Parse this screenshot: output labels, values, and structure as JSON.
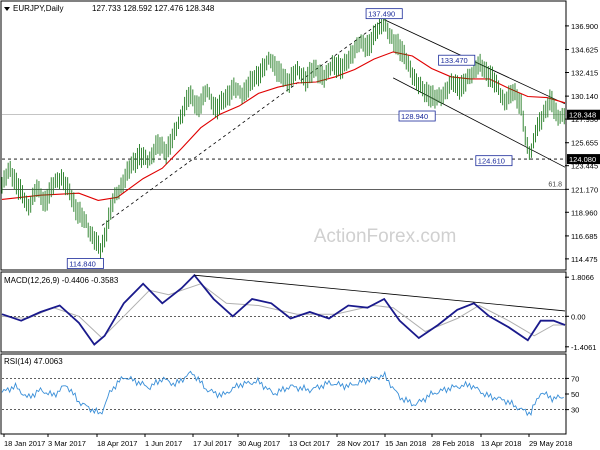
{
  "chart_data": {
    "type": "line",
    "title": "EURJPY,Daily",
    "ohlc_label": "127.733 128.592 127.476 128.348",
    "watermark": "ActionForex.com",
    "x_ticks": [
      "18 Jan 2017",
      "3 Mar 2017",
      "18 Apr 2017",
      "1 Jun 2017",
      "17 Jul 2017",
      "30 Aug 2017",
      "13 Oct 2017",
      "28 Nov 2017",
      "15 Jan 2018",
      "28 Feb 2018",
      "13 Apr 2018",
      "29 May 2018"
    ],
    "price_panel": {
      "ylim": [
        113.5,
        139.2
      ],
      "y_ticks": [
        "136.900",
        "134.625",
        "132.415",
        "130.140",
        "127.930",
        "125.655",
        "123.445",
        "121.170",
        "118.960",
        "116.685",
        "114.475"
      ],
      "last_price": "128.348",
      "support_level": "124.080",
      "fib_level": "121.170",
      "fib_label": "61.8",
      "price_series": [
        {
          "d": 0,
          "v": 121.8
        },
        {
          "d": 6,
          "v": 123.0
        },
        {
          "d": 14,
          "v": 121.0
        },
        {
          "d": 20,
          "v": 119.5
        },
        {
          "d": 27,
          "v": 121.3
        },
        {
          "d": 33,
          "v": 119.8
        },
        {
          "d": 40,
          "v": 121.5
        },
        {
          "d": 46,
          "v": 122.6
        },
        {
          "d": 52,
          "v": 121.0
        },
        {
          "d": 58,
          "v": 119.2
        },
        {
          "d": 65,
          "v": 118.0
        },
        {
          "d": 72,
          "v": 116.5
        },
        {
          "d": 77,
          "v": 115.1
        },
        {
          "d": 80,
          "v": 116.5
        },
        {
          "d": 86,
          "v": 119.8
        },
        {
          "d": 93,
          "v": 121.7
        },
        {
          "d": 100,
          "v": 123.2
        },
        {
          "d": 107,
          "v": 124.4
        },
        {
          "d": 114,
          "v": 124.0
        },
        {
          "d": 121,
          "v": 125.5
        },
        {
          "d": 128,
          "v": 124.7
        },
        {
          "d": 134,
          "v": 126.4
        },
        {
          "d": 140,
          "v": 128.5
        },
        {
          "d": 146,
          "v": 130.2
        },
        {
          "d": 153,
          "v": 129.0
        },
        {
          "d": 160,
          "v": 130.8
        },
        {
          "d": 167,
          "v": 128.8
        },
        {
          "d": 174,
          "v": 129.8
        },
        {
          "d": 181,
          "v": 131.0
        },
        {
          "d": 188,
          "v": 130.4
        },
        {
          "d": 195,
          "v": 131.5
        },
        {
          "d": 202,
          "v": 132.5
        },
        {
          "d": 209,
          "v": 133.9
        },
        {
          "d": 216,
          "v": 132.3
        },
        {
          "d": 223,
          "v": 131.4
        },
        {
          "d": 230,
          "v": 132.8
        },
        {
          "d": 237,
          "v": 131.7
        },
        {
          "d": 244,
          "v": 132.7
        },
        {
          "d": 251,
          "v": 132.0
        },
        {
          "d": 258,
          "v": 133.3
        },
        {
          "d": 265,
          "v": 132.6
        },
        {
          "d": 272,
          "v": 134.1
        },
        {
          "d": 279,
          "v": 135.4
        },
        {
          "d": 286,
          "v": 134.8
        },
        {
          "d": 293,
          "v": 136.6
        },
        {
          "d": 298,
          "v": 137.5
        },
        {
          "d": 303,
          "v": 135.8
        },
        {
          "d": 309,
          "v": 134.9
        },
        {
          "d": 316,
          "v": 133.4
        },
        {
          "d": 323,
          "v": 131.6
        },
        {
          "d": 330,
          "v": 130.5
        },
        {
          "d": 337,
          "v": 129.8
        },
        {
          "d": 344,
          "v": 130.4
        },
        {
          "d": 351,
          "v": 131.5
        },
        {
          "d": 358,
          "v": 130.8
        },
        {
          "d": 365,
          "v": 132.2
        },
        {
          "d": 372,
          "v": 133.3
        },
        {
          "d": 378,
          "v": 132.3
        },
        {
          "d": 385,
          "v": 131.4
        },
        {
          "d": 392,
          "v": 129.7
        },
        {
          "d": 399,
          "v": 130.6
        },
        {
          "d": 405,
          "v": 129.0
        },
        {
          "d": 409,
          "v": 125.4
        },
        {
          "d": 412,
          "v": 124.6
        },
        {
          "d": 416,
          "v": 126.8
        },
        {
          "d": 422,
          "v": 128.2
        },
        {
          "d": 428,
          "v": 129.8
        },
        {
          "d": 433,
          "v": 128.1
        },
        {
          "d": 439,
          "v": 128.5
        }
      ],
      "sma_series": [
        {
          "d": 0,
          "v": 120.2
        },
        {
          "d": 30,
          "v": 120.6
        },
        {
          "d": 60,
          "v": 120.8
        },
        {
          "d": 75,
          "v": 120.1
        },
        {
          "d": 90,
          "v": 120.4
        },
        {
          "d": 110,
          "v": 122.2
        },
        {
          "d": 125,
          "v": 123.2
        },
        {
          "d": 140,
          "v": 125.1
        },
        {
          "d": 155,
          "v": 127.1
        },
        {
          "d": 170,
          "v": 128.4
        },
        {
          "d": 185,
          "v": 129.2
        },
        {
          "d": 200,
          "v": 130.4
        },
        {
          "d": 215,
          "v": 131.0
        },
        {
          "d": 230,
          "v": 131.4
        },
        {
          "d": 245,
          "v": 131.5
        },
        {
          "d": 260,
          "v": 132.0
        },
        {
          "d": 275,
          "v": 132.7
        },
        {
          "d": 290,
          "v": 133.7
        },
        {
          "d": 305,
          "v": 134.4
        },
        {
          "d": 320,
          "v": 134.0
        },
        {
          "d": 335,
          "v": 132.8
        },
        {
          "d": 350,
          "v": 132.0
        },
        {
          "d": 365,
          "v": 131.8
        },
        {
          "d": 380,
          "v": 131.8
        },
        {
          "d": 395,
          "v": 130.9
        },
        {
          "d": 410,
          "v": 130.1
        },
        {
          "d": 425,
          "v": 130.0
        },
        {
          "d": 439,
          "v": 129.5
        }
      ],
      "trend_lines": [
        {
          "from": {
            "d": 78,
            "v": 117.7
          },
          "to": {
            "d": 298,
            "v": 137.5
          }
        },
        {
          "from": {
            "d": 298,
            "v": 137.5
          },
          "to": {
            "d": 439,
            "v": 129.4
          }
        },
        {
          "from": {
            "d": 305,
            "v": 131.9
          },
          "to": {
            "d": 439,
            "v": 123.3
          }
        }
      ],
      "annotations": [
        {
          "label": "137.490",
          "d": 298,
          "v": 137.5
        },
        {
          "label": "133.470",
          "d": 364,
          "v": 133.5
        },
        {
          "label": "128.940",
          "d": 330,
          "v": 128.9
        },
        {
          "label": "124.610",
          "d": 393,
          "v": 124.6
        },
        {
          "label": "114.840",
          "d": 65,
          "v": 114.8
        }
      ]
    },
    "macd_panel": {
      "label": "MACD(12,26,9) -0.4406 -0.3583",
      "ylim": [
        -1.6,
        2.0
      ],
      "y_ticks": [
        "1.8066",
        "0.00",
        "-1.4061"
      ],
      "macd_series": [
        {
          "d": 0,
          "v": 0.1
        },
        {
          "d": 15,
          "v": -0.2
        },
        {
          "d": 30,
          "v": 0.2
        },
        {
          "d": 45,
          "v": 0.5
        },
        {
          "d": 60,
          "v": -0.3
        },
        {
          "d": 72,
          "v": -1.3
        },
        {
          "d": 80,
          "v": -0.9
        },
        {
          "d": 95,
          "v": 0.6
        },
        {
          "d": 110,
          "v": 1.5
        },
        {
          "d": 125,
          "v": 0.6
        },
        {
          "d": 140,
          "v": 1.3
        },
        {
          "d": 150,
          "v": 1.9
        },
        {
          "d": 165,
          "v": 0.8
        },
        {
          "d": 180,
          "v": 0.0
        },
        {
          "d": 195,
          "v": 0.8
        },
        {
          "d": 210,
          "v": 0.6
        },
        {
          "d": 225,
          "v": -0.1
        },
        {
          "d": 240,
          "v": 0.2
        },
        {
          "d": 255,
          "v": -0.1
        },
        {
          "d": 270,
          "v": 0.5
        },
        {
          "d": 285,
          "v": 0.4
        },
        {
          "d": 298,
          "v": 0.8
        },
        {
          "d": 310,
          "v": -0.2
        },
        {
          "d": 325,
          "v": -1.0
        },
        {
          "d": 340,
          "v": -0.4
        },
        {
          "d": 355,
          "v": 0.3
        },
        {
          "d": 368,
          "v": 0.6
        },
        {
          "d": 380,
          "v": 0.0
        },
        {
          "d": 395,
          "v": -0.5
        },
        {
          "d": 410,
          "v": -1.1
        },
        {
          "d": 420,
          "v": -0.2
        },
        {
          "d": 430,
          "v": -0.2
        },
        {
          "d": 439,
          "v": -0.4
        }
      ],
      "signal_series": [
        {
          "d": 0,
          "v": 0.0
        },
        {
          "d": 20,
          "v": -0.1
        },
        {
          "d": 40,
          "v": 0.4
        },
        {
          "d": 60,
          "v": 0.0
        },
        {
          "d": 78,
          "v": -1.0
        },
        {
          "d": 95,
          "v": 0.0
        },
        {
          "d": 115,
          "v": 1.2
        },
        {
          "d": 130,
          "v": 1.0
        },
        {
          "d": 155,
          "v": 1.5
        },
        {
          "d": 175,
          "v": 0.6
        },
        {
          "d": 200,
          "v": 0.5
        },
        {
          "d": 230,
          "v": 0.1
        },
        {
          "d": 260,
          "v": 0.1
        },
        {
          "d": 290,
          "v": 0.5
        },
        {
          "d": 305,
          "v": 0.4
        },
        {
          "d": 330,
          "v": -0.7
        },
        {
          "d": 355,
          "v": -0.1
        },
        {
          "d": 372,
          "v": 0.5
        },
        {
          "d": 395,
          "v": -0.2
        },
        {
          "d": 415,
          "v": -0.9
        },
        {
          "d": 430,
          "v": -0.4
        },
        {
          "d": 439,
          "v": -0.4
        }
      ],
      "trend_line": {
        "from": {
          "d": 150,
          "v": 1.9
        },
        "to": {
          "d": 439,
          "v": 0.25
        }
      }
    },
    "rsi_panel": {
      "label": "RSI(14) 47.0063",
      "ylim": [
        0,
        100
      ],
      "y_ticks": [
        "70",
        "50",
        "30"
      ],
      "levels": [
        70,
        30
      ],
      "rsi_series": [
        {
          "d": 0,
          "v": 52
        },
        {
          "d": 10,
          "v": 60
        },
        {
          "d": 20,
          "v": 45
        },
        {
          "d": 30,
          "v": 55
        },
        {
          "d": 40,
          "v": 48
        },
        {
          "d": 50,
          "v": 62
        },
        {
          "d": 60,
          "v": 40
        },
        {
          "d": 70,
          "v": 30
        },
        {
          "d": 77,
          "v": 24
        },
        {
          "d": 85,
          "v": 55
        },
        {
          "d": 95,
          "v": 72
        },
        {
          "d": 105,
          "v": 66
        },
        {
          "d": 115,
          "v": 58
        },
        {
          "d": 125,
          "v": 70
        },
        {
          "d": 135,
          "v": 62
        },
        {
          "d": 148,
          "v": 78
        },
        {
          "d": 160,
          "v": 55
        },
        {
          "d": 172,
          "v": 48
        },
        {
          "d": 185,
          "v": 62
        },
        {
          "d": 200,
          "v": 66
        },
        {
          "d": 212,
          "v": 50
        },
        {
          "d": 225,
          "v": 60
        },
        {
          "d": 240,
          "v": 55
        },
        {
          "d": 255,
          "v": 64
        },
        {
          "d": 270,
          "v": 60
        },
        {
          "d": 285,
          "v": 68
        },
        {
          "d": 298,
          "v": 74
        },
        {
          "d": 310,
          "v": 46
        },
        {
          "d": 322,
          "v": 36
        },
        {
          "d": 335,
          "v": 50
        },
        {
          "d": 350,
          "v": 58
        },
        {
          "d": 365,
          "v": 62
        },
        {
          "d": 378,
          "v": 48
        },
        {
          "d": 392,
          "v": 42
        },
        {
          "d": 405,
          "v": 30
        },
        {
          "d": 412,
          "v": 25
        },
        {
          "d": 420,
          "v": 52
        },
        {
          "d": 430,
          "v": 44
        },
        {
          "d": 439,
          "v": 47
        }
      ]
    }
  }
}
